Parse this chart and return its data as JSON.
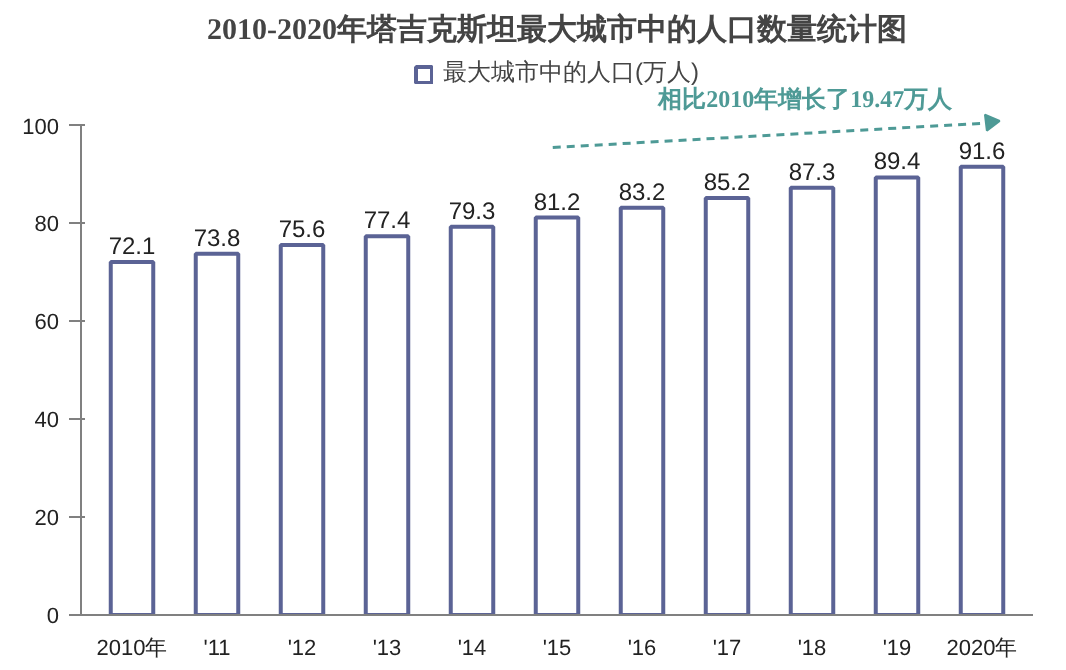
{
  "chart_data": {
    "type": "bar",
    "title": "2010-2020年塔吉克斯坦最大城市中的人口数量统计图",
    "categories": [
      "2010年",
      "'11",
      "'12",
      "'13",
      "'14",
      "'15",
      "'16",
      "'17",
      "'18",
      "'19",
      "2020年"
    ],
    "series": [
      {
        "name": "最大城市中的人口(万人)",
        "color": "#5b6395",
        "values": [
          72.1,
          73.8,
          75.6,
          77.4,
          79.3,
          81.2,
          83.2,
          85.2,
          87.3,
          89.4,
          91.6
        ]
      }
    ],
    "ylim": [
      0,
      100
    ],
    "yticks": [
      0,
      20,
      40,
      60,
      80,
      100
    ],
    "data_labels": true,
    "legend": "top",
    "grid": false,
    "annotations": [
      "相比2010年增长了19.47万人"
    ]
  }
}
